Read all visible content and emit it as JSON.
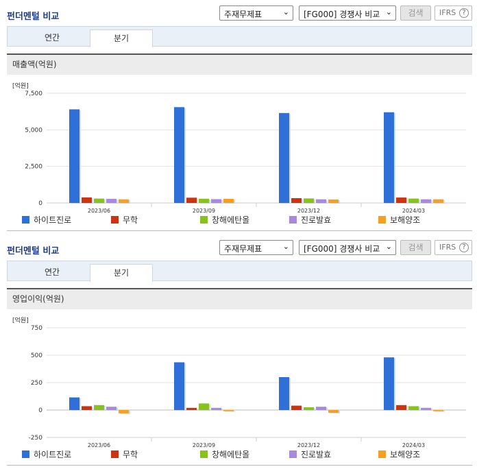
{
  "panels": [
    {
      "title": "펀더멘털 비교",
      "select1": "주재무제표",
      "select2": "[FG000] 경쟁사 비교",
      "search": "검색",
      "ifrs": "IFRS",
      "ifrs_help": "?",
      "tabs": [
        "연간",
        "분기"
      ],
      "active_tab": "분기",
      "header": "매출액(억원)",
      "unit": "[억원]"
    },
    {
      "title": "펀더멘털 비교",
      "select1": "주재무제표",
      "select2": "[FG000] 경쟁사 비교",
      "search": "검색",
      "ifrs": "IFRS",
      "ifrs_help": "?",
      "tabs": [
        "연간",
        "분기"
      ],
      "active_tab": "분기",
      "header": "영업이익(억원)",
      "unit": "[억원]"
    }
  ],
  "legend": [
    "하이트진로",
    "무학",
    "창해에탄올",
    "진로발효",
    "보해양조"
  ],
  "colors": [
    "#2e6fd8",
    "#cc3311",
    "#88c21c",
    "#aa88dd",
    "#f5a020"
  ],
  "chart_data": [
    {
      "type": "bar",
      "title": "매출액(억원)",
      "ylabel": "[억원]",
      "categories": [
        "2023/06",
        "2023/09",
        "2023/12",
        "2024/03"
      ],
      "ylim": [
        0,
        7500
      ],
      "yticks": [
        0,
        2500,
        5000,
        7500
      ],
      "ytick_labels": [
        "0",
        "2,500",
        "5,000",
        "7,500"
      ],
      "series": [
        {
          "name": "하이트진로",
          "values": [
            6400,
            6550,
            6150,
            6200
          ]
        },
        {
          "name": "무학",
          "values": [
            380,
            360,
            330,
            370
          ]
        },
        {
          "name": "창해에탄올",
          "values": [
            300,
            290,
            310,
            300
          ]
        },
        {
          "name": "진로발효",
          "values": [
            280,
            260,
            250,
            250
          ]
        },
        {
          "name": "보해양조",
          "values": [
            250,
            280,
            240,
            250
          ]
        }
      ]
    },
    {
      "type": "bar",
      "title": "영업이익(억원)",
      "ylabel": "[억원]",
      "categories": [
        "2023/06",
        "2023/09",
        "2023/12",
        "2024/03"
      ],
      "ylim": [
        -250,
        750
      ],
      "yticks": [
        -250,
        0,
        250,
        500,
        750
      ],
      "ytick_labels": [
        "-250",
        "0",
        "250",
        "500",
        "750"
      ],
      "series": [
        {
          "name": "하이트진로",
          "values": [
            115,
            435,
            300,
            480
          ]
        },
        {
          "name": "무학",
          "values": [
            35,
            20,
            40,
            45
          ]
        },
        {
          "name": "창해에탄올",
          "values": [
            45,
            60,
            25,
            35
          ]
        },
        {
          "name": "진로발효",
          "values": [
            30,
            20,
            30,
            20
          ]
        },
        {
          "name": "보해양조",
          "values": [
            -30,
            -10,
            -25,
            -10
          ]
        }
      ]
    }
  ]
}
